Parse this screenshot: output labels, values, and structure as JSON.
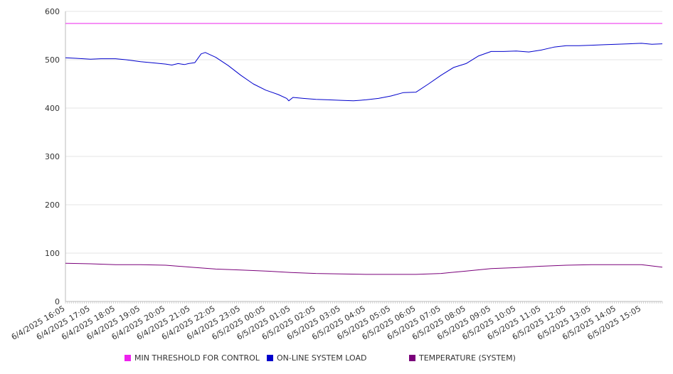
{
  "colors": {
    "threshold": "#ee22ee",
    "load": "#0000cc",
    "temperature": "#7a007a",
    "grid": "#e6e6e6",
    "axis": "#bbbbbb"
  },
  "legend": [
    {
      "label": "MIN THRESHOLD FOR CONTROL",
      "color": "#ee22ee"
    },
    {
      "label": "ON-LINE SYSTEM LOAD",
      "color": "#0000cc"
    },
    {
      "label": "TEMPERATURE (SYSTEM)",
      "color": "#7a007a"
    }
  ],
  "chart_data": {
    "type": "line",
    "ylim": [
      0,
      600
    ],
    "yticks": [
      0,
      100,
      200,
      300,
      400,
      500,
      600
    ],
    "x_range": [
      "6/4/2025 16:05",
      "6/5/2025 15:55"
    ],
    "x_tick_labels": [
      "6/4/2025 16:05",
      "6/4/2025 17:05",
      "6/4/2025 18:05",
      "6/4/2025 19:05",
      "6/4/2025 20:05",
      "6/4/2025 21:05",
      "6/4/2025 22:05",
      "6/4/2025 23:05",
      "6/5/2025 00:05",
      "6/5/2025 01:05",
      "6/5/2025 02:05",
      "6/5/2025 03:05",
      "6/5/2025 04:05",
      "6/5/2025 05:05",
      "6/5/2025 06:05",
      "6/5/2025 07:05",
      "6/5/2025 08:05",
      "6/5/2025 09:05",
      "6/5/2025 10:05",
      "6/5/2025 11:05",
      "6/5/2025 12:05",
      "6/5/2025 13:05",
      "6/5/2025 14:05",
      "6/5/2025 15:05"
    ],
    "series": [
      {
        "name": "MIN THRESHOLD FOR CONTROL",
        "x": [
          "6/4/2025 16:05",
          "6/5/2025 15:55"
        ],
        "y": [
          575,
          575
        ]
      },
      {
        "name": "ON-LINE SYSTEM LOAD",
        "x": [
          "6/4/2025 16:05",
          "6/4/2025 16:30",
          "6/4/2025 17:05",
          "6/4/2025 17:30",
          "6/4/2025 18:05",
          "6/4/2025 18:30",
          "6/4/2025 19:05",
          "6/4/2025 19:30",
          "6/4/2025 20:05",
          "6/4/2025 20:20",
          "6/4/2025 20:35",
          "6/4/2025 20:50",
          "6/4/2025 21:00",
          "6/4/2025 21:15",
          "6/4/2025 21:30",
          "6/4/2025 21:40",
          "6/4/2025 22:05",
          "6/4/2025 22:35",
          "6/4/2025 23:05",
          "6/4/2025 23:35",
          "6/5/2025 00:05",
          "6/5/2025 00:35",
          "6/5/2025 00:55",
          "6/5/2025 01:00",
          "6/5/2025 01:10",
          "6/5/2025 01:35",
          "6/5/2025 02:05",
          "6/5/2025 02:35",
          "6/5/2025 03:05",
          "6/5/2025 03:35",
          "6/5/2025 04:05",
          "6/5/2025 04:35",
          "6/5/2025 05:05",
          "6/5/2025 05:35",
          "6/5/2025 06:05",
          "6/5/2025 06:35",
          "6/5/2025 07:05",
          "6/5/2025 07:35",
          "6/5/2025 08:05",
          "6/5/2025 08:35",
          "6/5/2025 09:05",
          "6/5/2025 09:35",
          "6/5/2025 10:05",
          "6/5/2025 10:35",
          "6/5/2025 11:05",
          "6/5/2025 11:35",
          "6/5/2025 12:05",
          "6/5/2025 12:35",
          "6/5/2025 13:05",
          "6/5/2025 13:35",
          "6/5/2025 14:05",
          "6/5/2025 14:35",
          "6/5/2025 15:05",
          "6/5/2025 15:30",
          "6/5/2025 15:55"
        ],
        "y": [
          504,
          503,
          501,
          502,
          502,
          500,
          496,
          494,
          491,
          489,
          492,
          490,
          492,
          494,
          512,
          515,
          505,
          488,
          468,
          450,
          437,
          428,
          420,
          415,
          422,
          420,
          418,
          417,
          416,
          415,
          417,
          420,
          425,
          432,
          433,
          450,
          468,
          484,
          492,
          508,
          517,
          517,
          518,
          516,
          520,
          526,
          529,
          529,
          530,
          531,
          532,
          533,
          534,
          532,
          533
        ]
      },
      {
        "name": "TEMPERATURE (SYSTEM)",
        "x": [
          "6/4/2025 16:05",
          "6/4/2025 17:05",
          "6/4/2025 18:05",
          "6/4/2025 19:05",
          "6/4/2025 20:05",
          "6/4/2025 21:05",
          "6/4/2025 22:05",
          "6/4/2025 23:05",
          "6/5/2025 00:05",
          "6/5/2025 01:05",
          "6/5/2025 02:05",
          "6/5/2025 03:05",
          "6/5/2025 04:05",
          "6/5/2025 05:05",
          "6/5/2025 06:05",
          "6/5/2025 07:05",
          "6/5/2025 08:05",
          "6/5/2025 09:05",
          "6/5/2025 10:05",
          "6/5/2025 11:05",
          "6/5/2025 12:05",
          "6/5/2025 13:05",
          "6/5/2025 14:05",
          "6/5/2025 15:05",
          "6/5/2025 15:55"
        ],
        "y": [
          79,
          78,
          76,
          76,
          75,
          71,
          67,
          65,
          63,
          60,
          58,
          57,
          56,
          56,
          56,
          58,
          63,
          68,
          70,
          73,
          75,
          76,
          76,
          76,
          71
        ]
      }
    ]
  }
}
